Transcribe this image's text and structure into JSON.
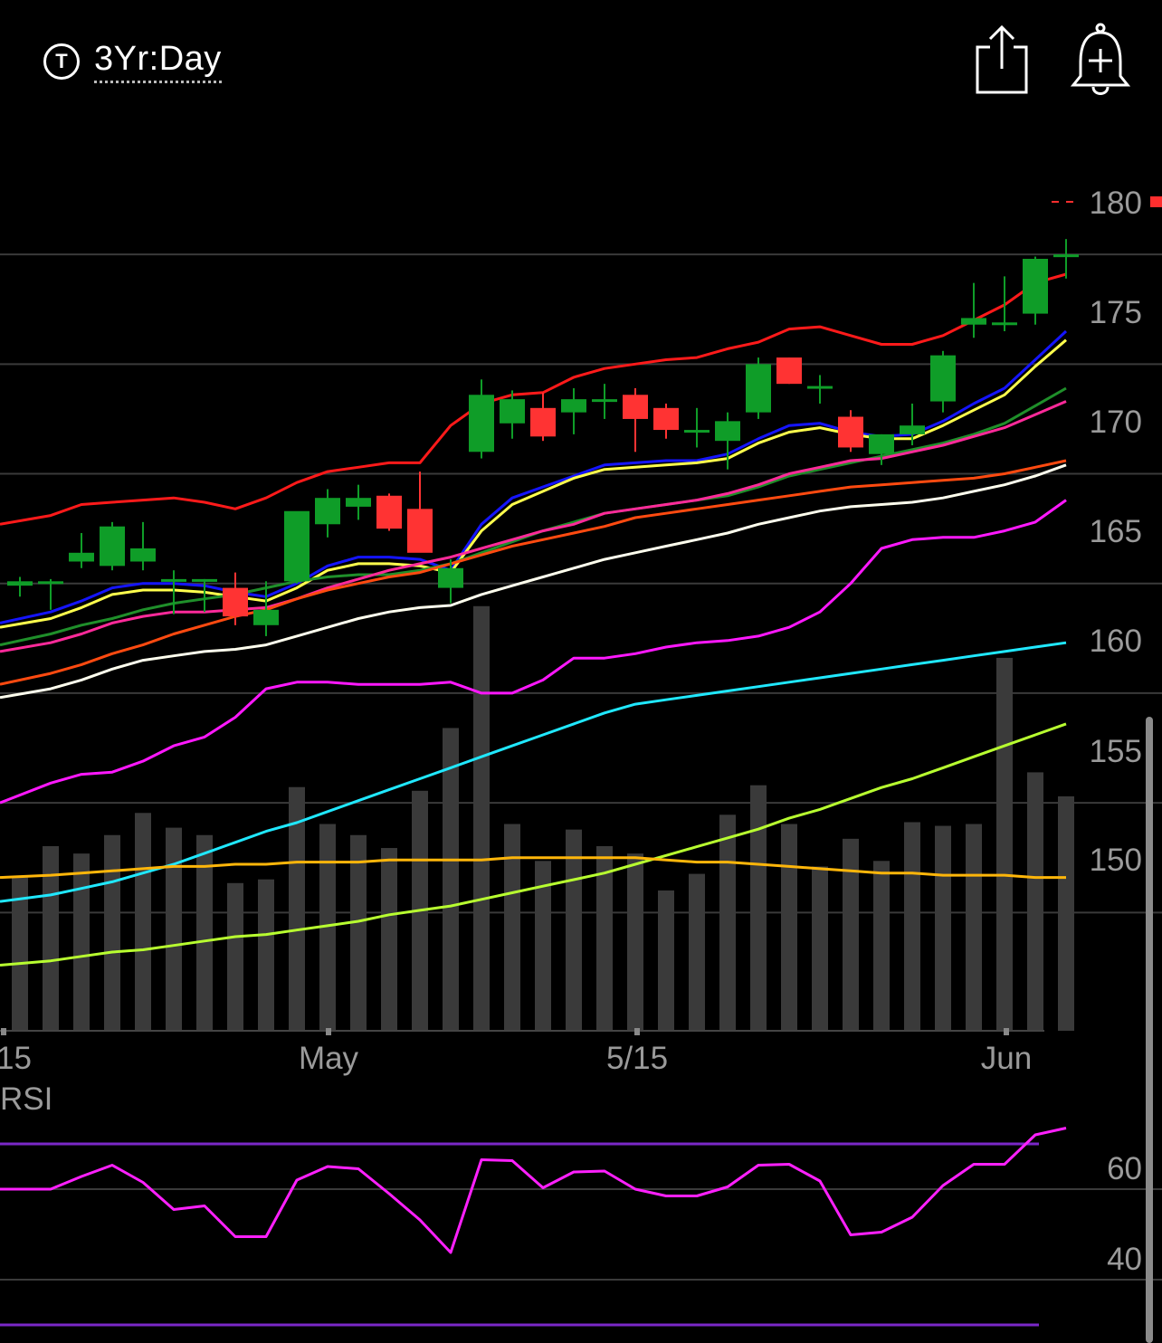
{
  "header": {
    "timeframe_icon": "T",
    "timeframe_label": "3Yr:Day",
    "share_icon": "share-icon",
    "alert_icon": "add-alert-bell-icon"
  },
  "colors": {
    "background": "#000000",
    "up_candle": "#0f9d28",
    "down_candle": "#ff3333",
    "gridline": "#3a3a3a",
    "volume": "#3a3a3a",
    "bb_bands": "#ff1a1a",
    "ema_fast": "#1515ff",
    "ema_slow": "#ffff4d",
    "ma_green": "#1f8f2a",
    "ma_magenta": "#ff2a9a",
    "ma_orange": "#ff4a10",
    "ma_white": "#ffffee",
    "keltner_lower": "#ff18ff",
    "ma_cyan": "#20e8ff",
    "ma_lime": "#b8ff30",
    "ma_gold": "#ffb60a",
    "rsi_line": "#ff20ff",
    "rsi_levels": "#7a28c8"
  },
  "price_axis": {
    "labels": [
      "180",
      "175",
      "170",
      "165",
      "160",
      "155",
      "150"
    ]
  },
  "date_axis": {
    "labels": [
      "15",
      "May",
      "5/15",
      "Jun"
    ]
  },
  "rsi_panel": {
    "title": "RSI",
    "axis_labels": [
      "60",
      "40"
    ]
  },
  "chart_data": {
    "type": "candlestick",
    "ylim": [
      146.4,
      181.3
    ],
    "candles": [
      {
        "o": 164.9,
        "h": 165.3,
        "l": 164.4,
        "c": 165.1
      },
      {
        "o": 165.0,
        "h": 165.2,
        "l": 163.8,
        "c": 165.1
      },
      {
        "o": 166.0,
        "h": 167.3,
        "l": 165.7,
        "c": 166.4
      },
      {
        "o": 165.8,
        "h": 167.8,
        "l": 165.6,
        "c": 167.6
      },
      {
        "o": 166.0,
        "h": 167.8,
        "l": 165.6,
        "c": 166.6
      },
      {
        "o": 165.2,
        "h": 165.6,
        "l": 163.6,
        "c": 165.2
      },
      {
        "o": 165.1,
        "h": 165.2,
        "l": 163.7,
        "c": 165.2
      },
      {
        "o": 164.8,
        "h": 165.5,
        "l": 163.1,
        "c": 163.5
      },
      {
        "o": 163.1,
        "h": 165.1,
        "l": 162.6,
        "c": 163.8
      },
      {
        "o": 165.1,
        "h": 168.0,
        "l": 165.0,
        "c": 168.3
      },
      {
        "o": 167.7,
        "h": 169.3,
        "l": 167.1,
        "c": 168.9
      },
      {
        "o": 168.5,
        "h": 169.5,
        "l": 167.9,
        "c": 168.9
      },
      {
        "o": 169.0,
        "h": 169.1,
        "l": 167.4,
        "c": 167.5
      },
      {
        "o": 168.4,
        "h": 170.1,
        "l": 166.5,
        "c": 166.4
      },
      {
        "o": 164.8,
        "h": 166.1,
        "l": 164.1,
        "c": 165.7
      },
      {
        "o": 171.0,
        "h": 174.3,
        "l": 170.7,
        "c": 173.6
      },
      {
        "o": 172.3,
        "h": 173.8,
        "l": 171.6,
        "c": 173.4
      },
      {
        "o": 173.0,
        "h": 173.7,
        "l": 171.5,
        "c": 171.7
      },
      {
        "o": 172.8,
        "h": 173.9,
        "l": 171.8,
        "c": 173.4
      },
      {
        "o": 173.4,
        "h": 174.1,
        "l": 172.5,
        "c": 173.4
      },
      {
        "o": 173.6,
        "h": 173.9,
        "l": 171.0,
        "c": 172.5
      },
      {
        "o": 173.0,
        "h": 173.2,
        "l": 171.6,
        "c": 172.0
      },
      {
        "o": 171.9,
        "h": 173.0,
        "l": 171.2,
        "c": 172.0
      },
      {
        "o": 171.5,
        "h": 172.8,
        "l": 170.2,
        "c": 172.4
      },
      {
        "o": 172.8,
        "h": 175.3,
        "l": 172.5,
        "c": 175.0
      },
      {
        "o": 175.3,
        "h": 175.3,
        "l": 174.1,
        "c": 174.1
      },
      {
        "o": 173.9,
        "h": 174.5,
        "l": 173.2,
        "c": 174.0
      },
      {
        "o": 172.6,
        "h": 172.9,
        "l": 171.0,
        "c": 171.2
      },
      {
        "o": 170.9,
        "h": 171.8,
        "l": 170.4,
        "c": 171.8
      },
      {
        "o": 171.8,
        "h": 173.2,
        "l": 171.3,
        "c": 172.2
      },
      {
        "o": 173.3,
        "h": 175.6,
        "l": 172.8,
        "c": 175.4
      },
      {
        "o": 176.8,
        "h": 178.7,
        "l": 176.2,
        "c": 177.1
      },
      {
        "o": 176.9,
        "h": 179.0,
        "l": 176.5,
        "c": 176.9
      },
      {
        "o": 177.3,
        "h": 179.9,
        "l": 176.8,
        "c": 179.8
      },
      {
        "o": 180.0,
        "h": 180.7,
        "l": 178.9,
        "c": 180.0
      }
    ],
    "volume": [
      8.3,
      10.0,
      9.6,
      10.6,
      11.8,
      11.0,
      10.6,
      8.0,
      8.2,
      13.2,
      11.2,
      10.6,
      9.9,
      13.0,
      16.4,
      23.0,
      11.2,
      9.2,
      10.9,
      10.0,
      9.6,
      7.6,
      8.5,
      11.7,
      13.3,
      11.2,
      8.9,
      10.4,
      9.2,
      11.3,
      11.1,
      11.2,
      20.2,
      14.0,
      12.7
    ],
    "volume_ylim": [
      0,
      25
    ],
    "overlays": [
      {
        "name": "bb_upper",
        "color": "#ff1a1a",
        "values": [
          167.7,
          168.1,
          168.6,
          168.7,
          168.8,
          168.9,
          168.7,
          168.4,
          168.9,
          169.6,
          170.1,
          170.3,
          170.5,
          170.5,
          172.2,
          173.2,
          173.6,
          173.7,
          174.4,
          174.8,
          175.0,
          175.2,
          175.3,
          175.7,
          176.0,
          176.6,
          176.7,
          176.3,
          175.9,
          175.9,
          176.3,
          177.0,
          177.7,
          178.7,
          179.1
        ]
      },
      {
        "name": "ema_fast",
        "color": "#1515ff",
        "values": [
          163.2,
          163.7,
          164.2,
          164.8,
          165.0,
          165.0,
          164.9,
          164.6,
          164.4,
          165.0,
          165.8,
          166.2,
          166.2,
          166.1,
          165.6,
          167.7,
          168.9,
          169.4,
          169.9,
          170.4,
          170.5,
          170.6,
          170.6,
          170.9,
          171.6,
          172.2,
          172.3,
          171.9,
          171.7,
          171.8,
          172.4,
          173.2,
          173.9,
          175.2,
          176.5
        ]
      },
      {
        "name": "ema_slow",
        "color": "#ffff4d",
        "values": [
          163.0,
          163.4,
          163.9,
          164.5,
          164.7,
          164.7,
          164.6,
          164.4,
          164.2,
          164.8,
          165.6,
          165.9,
          165.9,
          165.8,
          165.5,
          167.4,
          168.6,
          169.2,
          169.8,
          170.2,
          170.3,
          170.4,
          170.5,
          170.7,
          171.4,
          171.9,
          172.1,
          171.8,
          171.6,
          171.6,
          172.2,
          172.9,
          173.6,
          174.9,
          176.1
        ]
      },
      {
        "name": "ma_green",
        "color": "#1f8f2a",
        "values": [
          162.2,
          162.7,
          163.1,
          163.4,
          163.8,
          164.1,
          164.3,
          164.5,
          164.8,
          165.1,
          165.3,
          165.4,
          165.4,
          165.6,
          165.9,
          166.4,
          166.9,
          167.4,
          167.8,
          168.2,
          168.4,
          168.6,
          168.8,
          169.0,
          169.4,
          169.9,
          170.2,
          170.5,
          170.8,
          171.1,
          171.4,
          171.8,
          172.3,
          173.1,
          173.9
        ]
      },
      {
        "name": "ma_magenta",
        "color": "#ff2a9a",
        "values": [
          161.9,
          162.3,
          162.7,
          163.2,
          163.5,
          163.7,
          163.7,
          163.8,
          163.9,
          164.3,
          164.8,
          165.2,
          165.6,
          165.9,
          166.2,
          166.6,
          167.0,
          167.4,
          167.7,
          168.2,
          168.4,
          168.6,
          168.8,
          169.1,
          169.5,
          170.0,
          170.3,
          170.6,
          170.7,
          171.0,
          171.3,
          171.7,
          172.1,
          172.7,
          173.3
        ]
      },
      {
        "name": "ma_orange",
        "color": "#ff4a10",
        "values": [
          160.4,
          160.9,
          161.3,
          161.8,
          162.2,
          162.7,
          163.1,
          163.5,
          163.8,
          164.3,
          164.7,
          165.0,
          165.3,
          165.5,
          165.9,
          166.3,
          166.7,
          167.0,
          167.3,
          167.6,
          168.0,
          168.2,
          168.4,
          168.6,
          168.8,
          169.0,
          169.2,
          169.4,
          169.5,
          169.6,
          169.7,
          169.8,
          170.0,
          170.3,
          170.6
        ]
      },
      {
        "name": "ma_white",
        "color": "#ffffee",
        "values": [
          159.8,
          160.2,
          160.6,
          161.1,
          161.5,
          161.7,
          161.9,
          162.0,
          162.2,
          162.6,
          163.0,
          163.4,
          163.7,
          163.9,
          164.0,
          164.5,
          164.9,
          165.3,
          165.7,
          166.1,
          166.4,
          166.7,
          167.0,
          167.3,
          167.7,
          168.0,
          168.3,
          168.5,
          168.6,
          168.7,
          168.9,
          169.2,
          169.5,
          169.9,
          170.4
        ]
      },
      {
        "name": "keltner_lower",
        "color": "#ff18ff",
        "values": [
          155.0,
          155.9,
          156.3,
          156.4,
          156.9,
          157.6,
          158.0,
          158.9,
          160.2,
          160.5,
          160.5,
          160.4,
          160.4,
          160.4,
          160.5,
          160.0,
          160.0,
          160.6,
          161.6,
          161.6,
          161.8,
          162.1,
          162.3,
          162.4,
          162.6,
          163.0,
          163.7,
          165.0,
          166.6,
          167.0,
          167.1,
          167.1,
          167.4,
          167.8,
          168.8
        ]
      },
      {
        "name": "ma_cyan",
        "color": "#20e8ff",
        "values": [
          150.5,
          150.8,
          151.1,
          151.4,
          151.8,
          152.2,
          152.7,
          153.2,
          153.7,
          154.1,
          154.6,
          155.1,
          155.6,
          156.1,
          156.6,
          157.1,
          157.6,
          158.1,
          158.6,
          159.1,
          159.5,
          159.7,
          159.9,
          160.1,
          160.3,
          160.5,
          160.7,
          160.9,
          161.1,
          161.3,
          161.5,
          161.7,
          161.9,
          162.1,
          162.3
        ]
      },
      {
        "name": "ma_lime",
        "color": "#b8ff30",
        "values": [
          147.6,
          147.8,
          148.0,
          148.2,
          148.3,
          148.5,
          148.7,
          148.9,
          149.0,
          149.2,
          149.4,
          149.6,
          149.9,
          150.1,
          150.3,
          150.6,
          150.9,
          151.2,
          151.5,
          151.8,
          152.2,
          152.6,
          153.0,
          153.4,
          153.8,
          154.3,
          154.7,
          155.2,
          155.7,
          156.1,
          156.6,
          157.1,
          157.6,
          158.1,
          158.6
        ]
      },
      {
        "name": "ma_gold",
        "color": "#ffb60a",
        "values": [
          151.6,
          151.7,
          151.8,
          151.9,
          152.0,
          152.1,
          152.1,
          152.2,
          152.2,
          152.3,
          152.3,
          152.3,
          152.4,
          152.4,
          152.4,
          152.4,
          152.5,
          152.5,
          152.5,
          152.5,
          152.5,
          152.4,
          152.3,
          152.3,
          152.2,
          152.1,
          152.0,
          151.9,
          151.8,
          151.8,
          151.7,
          151.7,
          151.7,
          151.6,
          151.6
        ]
      }
    ],
    "rsi": [
      60.0,
      60.0,
      62.8,
      65.3,
      61.5,
      55.5,
      56.3,
      49.5,
      49.5,
      62.0,
      65.0,
      64.5,
      59.0,
      53.2,
      46.0,
      66.5,
      66.3,
      60.3,
      63.8,
      64.0,
      60.0,
      58.5,
      58.5,
      60.5,
      65.3,
      65.5,
      61.8,
      49.9,
      50.5,
      53.8,
      60.8,
      65.5,
      65.5,
      72.0,
      73.5
    ],
    "rsi_ylim": [
      30,
      76
    ],
    "rsi_levels": [
      70,
      30
    ]
  }
}
